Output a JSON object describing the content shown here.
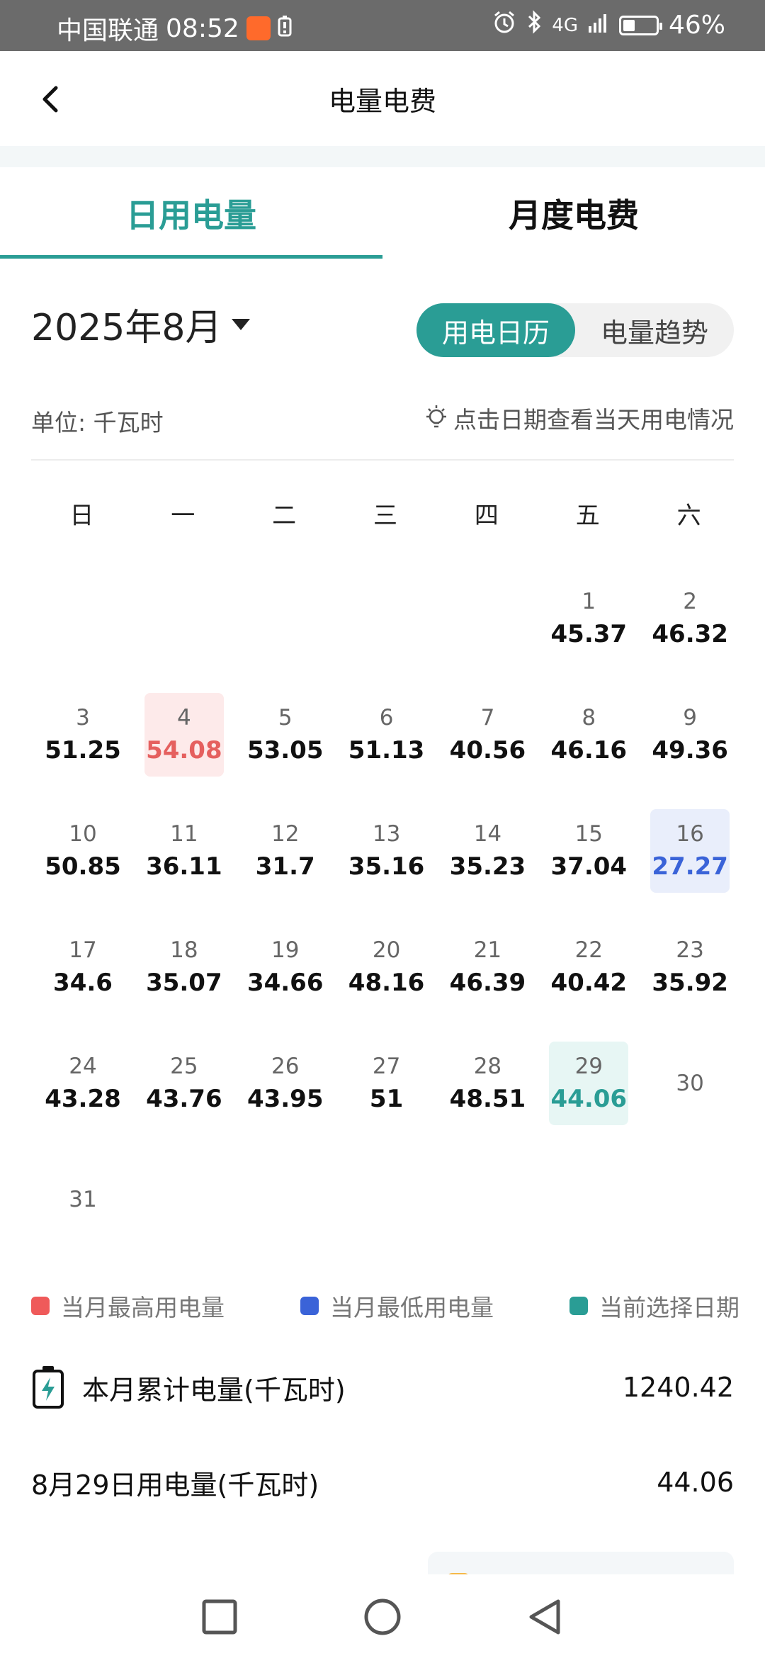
{
  "status_bar": {
    "carrier": "中国联通",
    "time": "08:52",
    "network": "4G",
    "battery_percent": "46%",
    "icons": [
      "app-notification-icon",
      "battery-saver-icon",
      "alarm-icon",
      "bluetooth-icon",
      "signal-icon",
      "battery-icon"
    ]
  },
  "nav": {
    "title": "电量电费",
    "back_icon": "chevron-left-icon"
  },
  "tabs": [
    {
      "label": "日用电量",
      "active": true
    },
    {
      "label": "月度电费",
      "active": false
    }
  ],
  "month_picker": {
    "label": "2025年8月"
  },
  "view_toggle": {
    "options": [
      "用电日历",
      "电量趋势"
    ],
    "selected": "用电日历"
  },
  "unit_label": "单位:  千瓦时",
  "hint": "点击日期查看当天用电情况",
  "weekdays": [
    "日",
    "一",
    "二",
    "三",
    "四",
    "五",
    "六"
  ],
  "calendar": {
    "year": 2025,
    "month": 8,
    "first_weekday_index": 5,
    "max_day": 4,
    "min_day": 16,
    "selected_day": 29,
    "days": [
      {
        "day": "1",
        "value": "45.37"
      },
      {
        "day": "2",
        "value": "46.32"
      },
      {
        "day": "3",
        "value": "51.25"
      },
      {
        "day": "4",
        "value": "54.08"
      },
      {
        "day": "5",
        "value": "53.05"
      },
      {
        "day": "6",
        "value": "51.13"
      },
      {
        "day": "7",
        "value": "40.56"
      },
      {
        "day": "8",
        "value": "46.16"
      },
      {
        "day": "9",
        "value": "49.36"
      },
      {
        "day": "10",
        "value": "50.85"
      },
      {
        "day": "11",
        "value": "36.11"
      },
      {
        "day": "12",
        "value": "31.7"
      },
      {
        "day": "13",
        "value": "35.16"
      },
      {
        "day": "14",
        "value": "35.23"
      },
      {
        "day": "15",
        "value": "37.04"
      },
      {
        "day": "16",
        "value": "27.27"
      },
      {
        "day": "17",
        "value": "34.6"
      },
      {
        "day": "18",
        "value": "35.07"
      },
      {
        "day": "19",
        "value": "34.66"
      },
      {
        "day": "20",
        "value": "48.16"
      },
      {
        "day": "21",
        "value": "46.39"
      },
      {
        "day": "22",
        "value": "40.42"
      },
      {
        "day": "23",
        "value": "35.92"
      },
      {
        "day": "24",
        "value": "43.28"
      },
      {
        "day": "25",
        "value": "43.76"
      },
      {
        "day": "26",
        "value": "43.95"
      },
      {
        "day": "27",
        "value": "51"
      },
      {
        "day": "28",
        "value": "48.51"
      },
      {
        "day": "29",
        "value": "44.06"
      },
      {
        "day": "30",
        "value": ""
      },
      {
        "day": "31",
        "value": ""
      }
    ]
  },
  "legend": [
    {
      "label": "当月最高用电量",
      "color": "#ef5a5a"
    },
    {
      "label": "当月最低用电量",
      "color": "#3a63d8"
    },
    {
      "label": "当前选择日期",
      "color": "#2a9d95"
    }
  ],
  "summary": {
    "monthly_total_label": "本月累计电量(千瓦时)",
    "monthly_total_value": "1240.42",
    "selected_day_label": "8月29日用电量(千瓦时)",
    "selected_day_value": "44.06"
  },
  "colors": {
    "accent": "#2a9d95",
    "max": "#e5605f",
    "min": "#3a63d8"
  }
}
